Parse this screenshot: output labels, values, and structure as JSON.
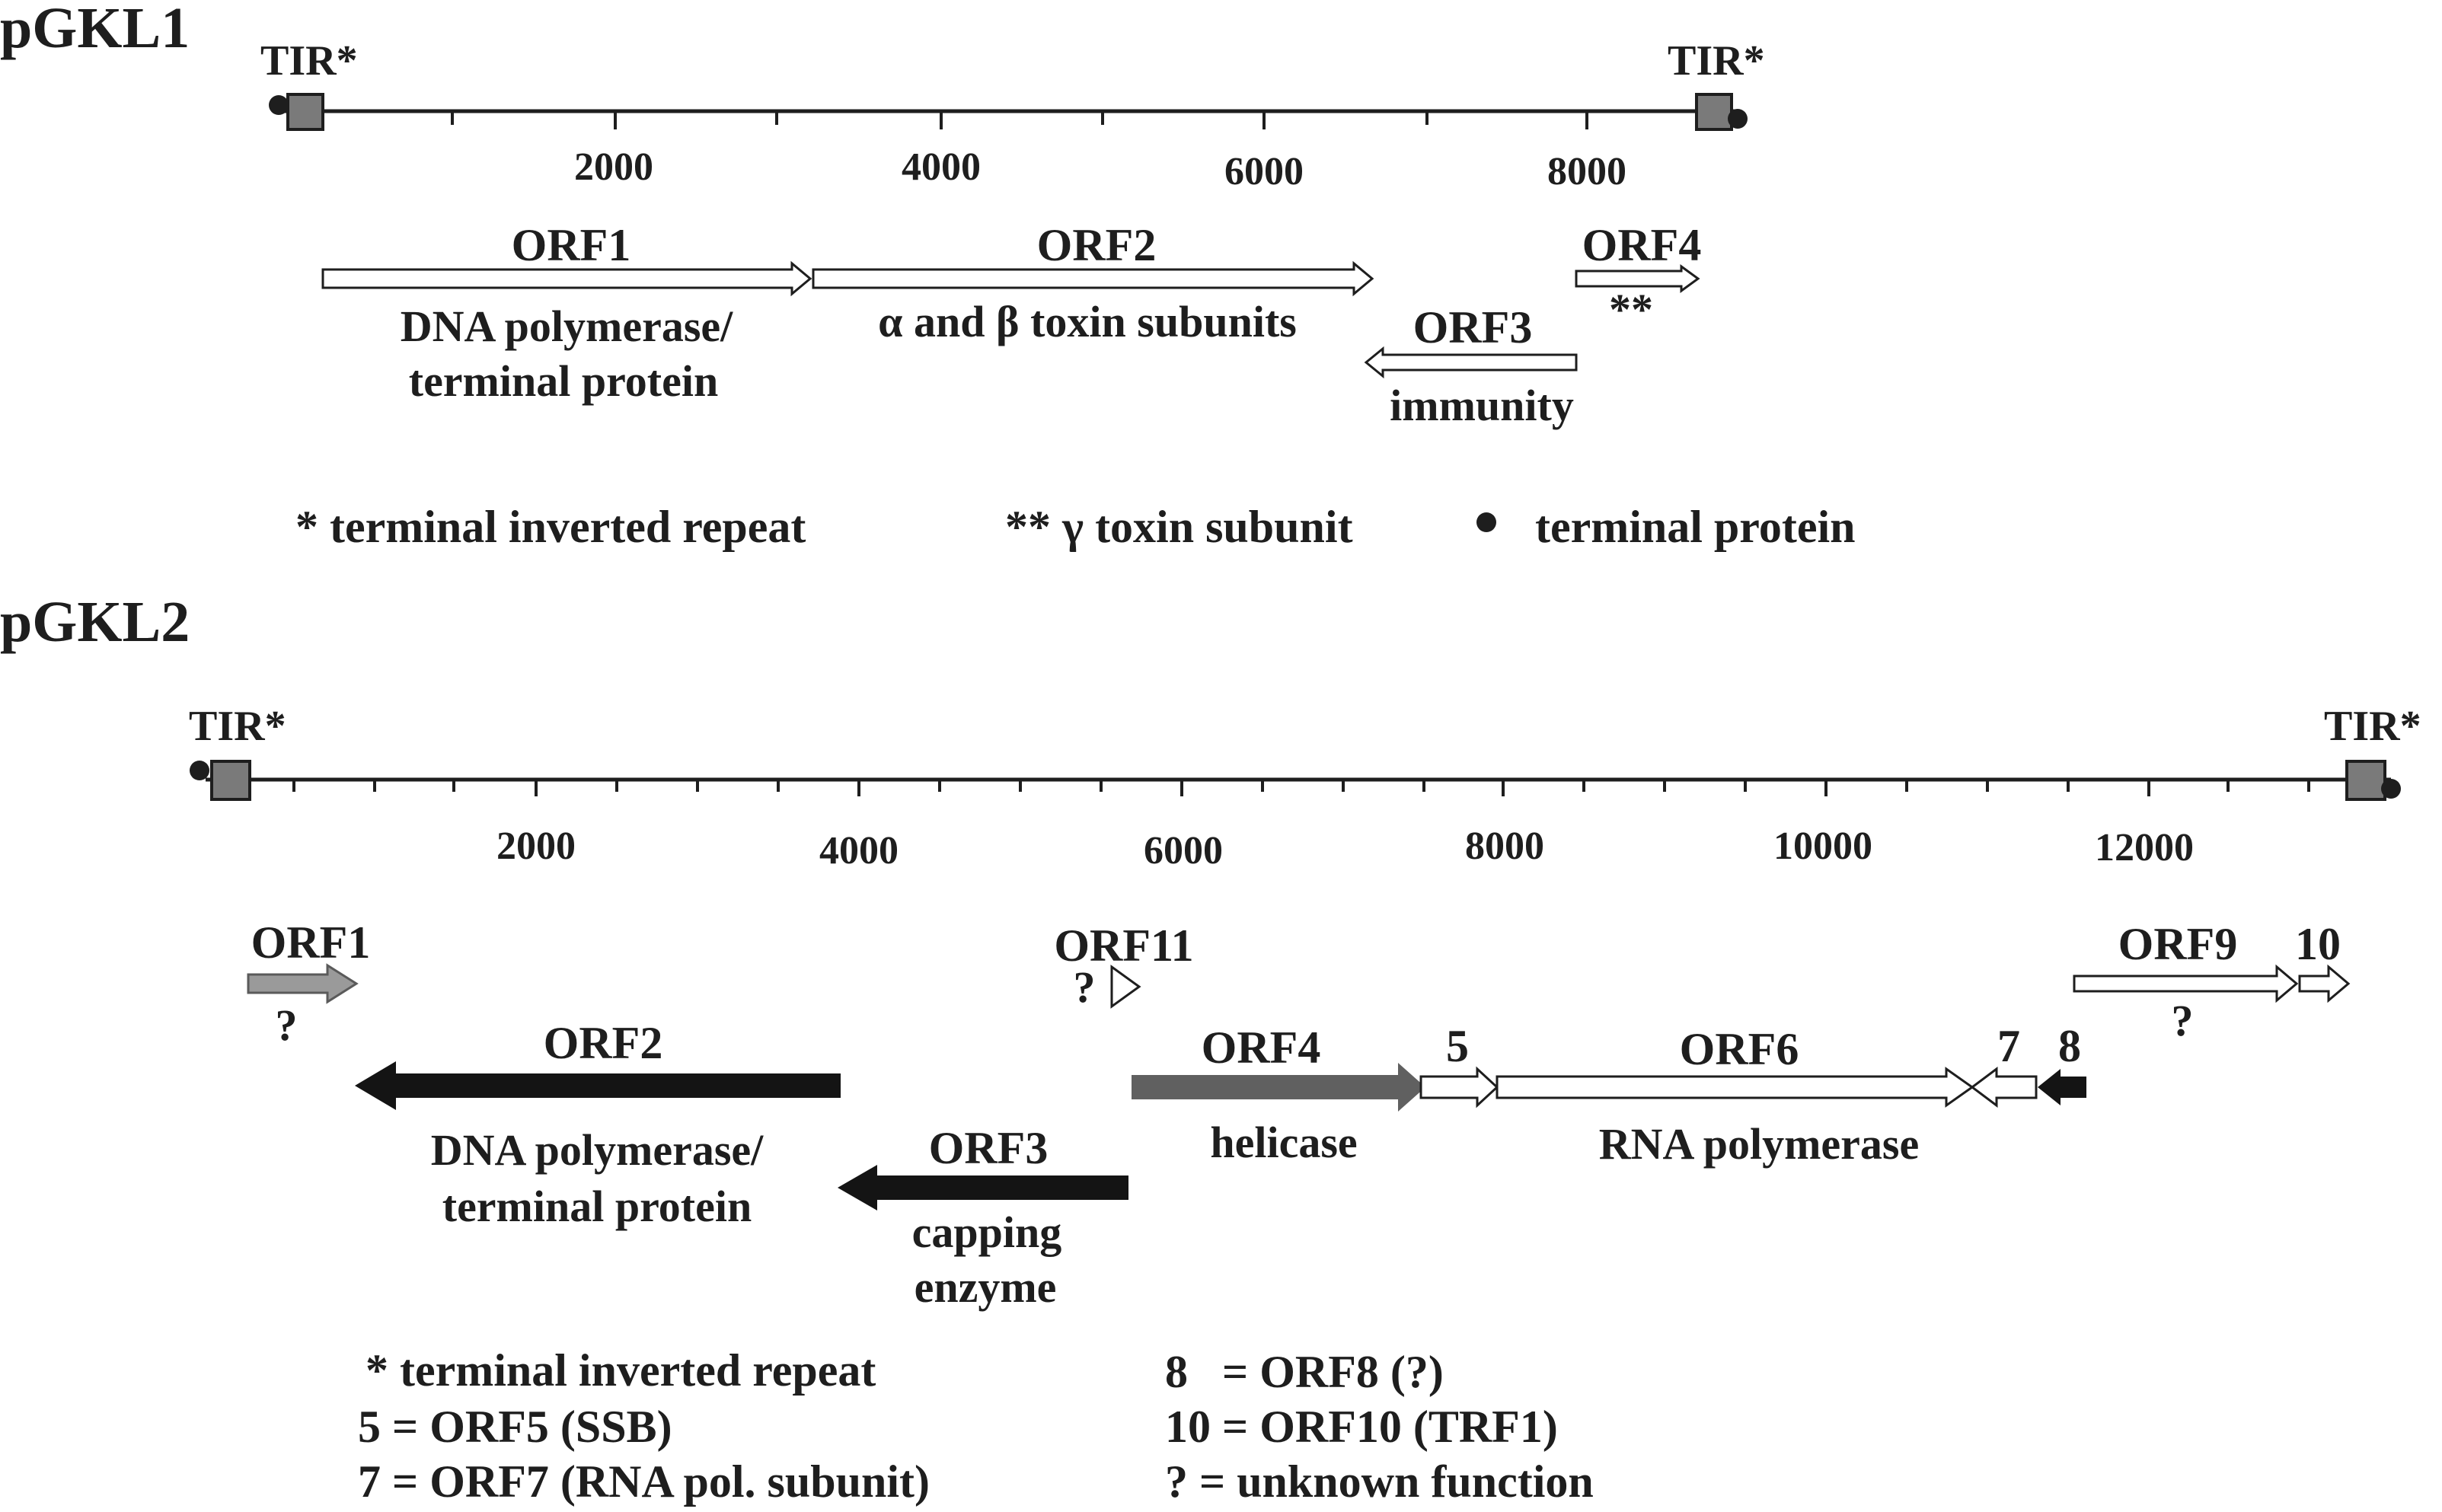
{
  "pgkl1": {
    "title": "pGKL1",
    "tir_left": "TIR*",
    "tir_right": "TIR*",
    "ticks": [
      "2000",
      "4000",
      "6000",
      "8000"
    ],
    "orf1": {
      "name": "ORF1",
      "desc1": "DNA polymerase/",
      "desc2": "terminal protein"
    },
    "orf2": {
      "name": "ORF2",
      "desc": "α and β toxin subunits"
    },
    "orf3": {
      "name": "ORF3",
      "desc": "immunity"
    },
    "orf4": {
      "name": "ORF4",
      "desc": "**"
    },
    "legend": {
      "tir": "* terminal inverted repeat",
      "gamma": "** γ toxin subunit",
      "tp": "terminal protein"
    }
  },
  "pgkl2": {
    "title": "pGKL2",
    "tir_left": "TIR*",
    "tir_right": "TIR*",
    "ticks": [
      "2000",
      "4000",
      "6000",
      "8000",
      "10000",
      "12000"
    ],
    "orf1": {
      "name": "ORF1",
      "desc": "?"
    },
    "orf11": {
      "name": "ORF11",
      "desc": "?"
    },
    "orf9": {
      "name": "ORF9",
      "desc": "?"
    },
    "orf10": {
      "name": "10"
    },
    "orf2": {
      "name": "ORF2",
      "desc1": "DNA polymerase/",
      "desc2": "terminal protein"
    },
    "orf4": {
      "name": "ORF4",
      "desc": "helicase"
    },
    "orf5": {
      "name": "5"
    },
    "orf6": {
      "name": "ORF6",
      "desc": "RNA polymerase"
    },
    "orf7": {
      "name": "7"
    },
    "orf8": {
      "name": "8"
    },
    "orf3": {
      "name": "ORF3",
      "desc1": "capping",
      "desc2": "enzyme"
    },
    "legend": {
      "tir": "* terminal inverted repeat",
      "orf5": "5 = ORF5 (SSB)",
      "orf7": "7 = ORF7 (RNA pol. subunit)",
      "orf8": "8   = ORF8 (?)",
      "orf10": "10 = ORF10 (TRF1)",
      "unknown": "? = unknown function"
    }
  },
  "colors": {
    "ink": "#1e1e1e",
    "gray_box": "#7a7a7a",
    "light_gray": "#9a9a9a",
    "dark_gray": "#606060",
    "black": "#141414"
  }
}
